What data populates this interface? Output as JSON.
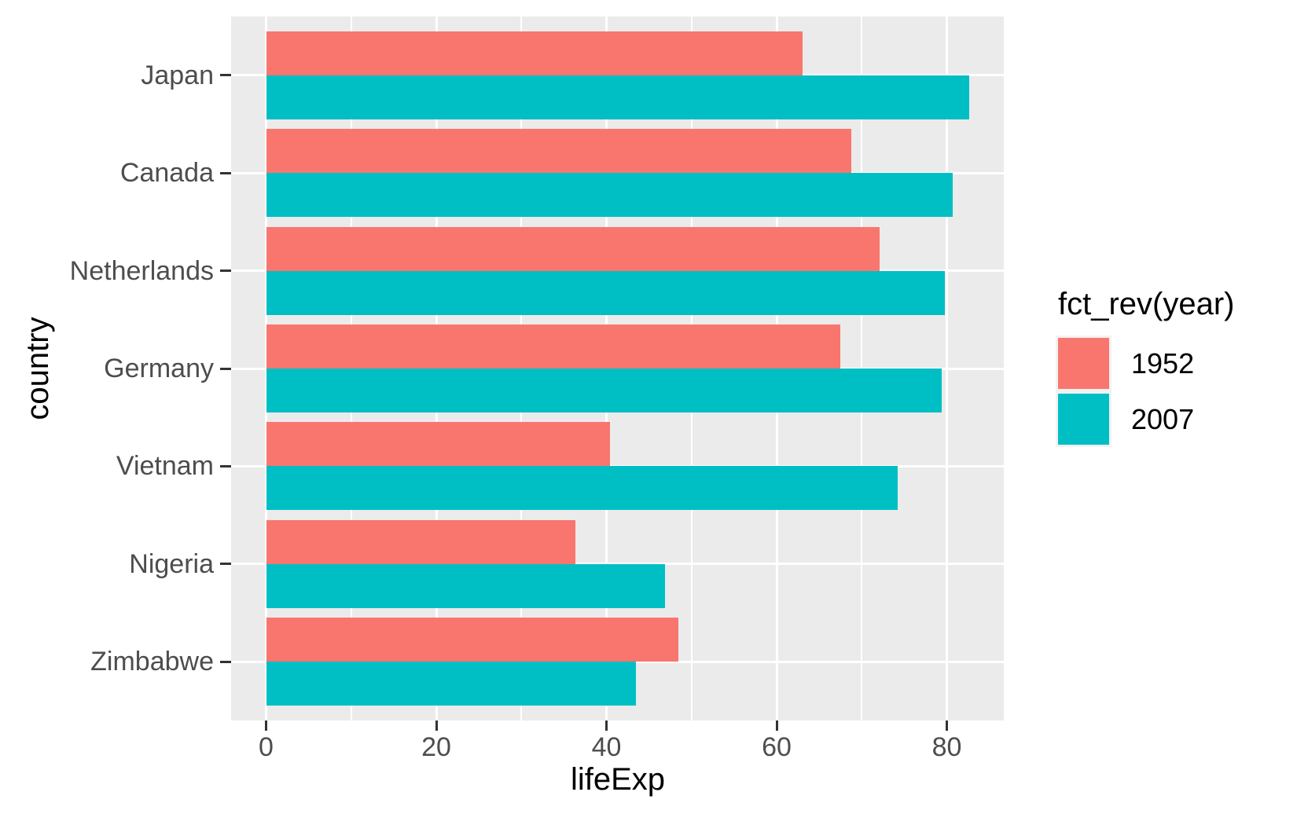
{
  "chart_data": {
    "type": "bar",
    "orientation": "horizontal",
    "title": "",
    "xlabel": "lifeExp",
    "ylabel": "country",
    "categories": [
      "Japan",
      "Canada",
      "Netherlands",
      "Germany",
      "Vietnam",
      "Nigeria",
      "Zimbabwe"
    ],
    "series": [
      {
        "name": "1952",
        "color": "#F8766D",
        "values": [
          63.03,
          68.75,
          72.13,
          67.5,
          40.412,
          36.324,
          48.451
        ]
      },
      {
        "name": "2007",
        "color": "#00BFC4",
        "values": [
          82.603,
          80.653,
          79.762,
          79.406,
          74.249,
          46.859,
          43.487
        ]
      }
    ],
    "x_ticks": [
      0,
      20,
      40,
      60,
      80
    ],
    "x_minor_gridlines": [
      10,
      30,
      50,
      70
    ],
    "xlim": [
      -4.13,
      86.73
    ],
    "grid": true,
    "legend_title": "fct_rev(year)",
    "legend_position": "right",
    "panel_background": "#EBEBEB",
    "gridline_color": "#ffffff",
    "tick_color": "#333333",
    "axis_text_color": "#4D4D4D",
    "title_text_color": "#000000"
  }
}
